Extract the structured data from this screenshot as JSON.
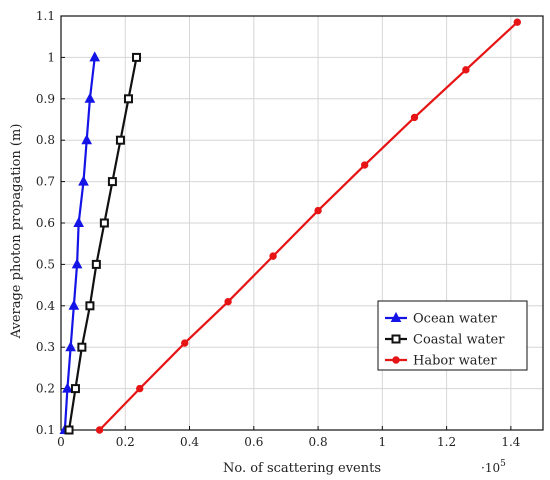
{
  "chart_data": {
    "type": "line",
    "title": "",
    "xlabel": "No. of scattering events",
    "ylabel": "Average photon propagation (m)",
    "x_multiplier": "·10",
    "x_multiplier_exp": "5",
    "xlim": [
      0,
      1.5
    ],
    "ylim": [
      0.1,
      1.1
    ],
    "xticks": [
      "0",
      "0.2",
      "0.4",
      "0.6",
      "0.8",
      "1",
      "1.2",
      "1.4"
    ],
    "xtick_values": [
      0,
      0.2,
      0.4,
      0.6,
      0.8,
      1.0,
      1.2,
      1.4
    ],
    "yticks": [
      "0.1",
      "0.2",
      "0.3",
      "0.4",
      "0.5",
      "0.6",
      "0.7",
      "0.8",
      "0.9",
      "1",
      "1.1"
    ],
    "ytick_values": [
      0.1,
      0.2,
      0.3,
      0.4,
      0.5,
      0.6,
      0.7,
      0.8,
      0.9,
      1.0,
      1.1
    ],
    "grid": true,
    "legend_position": "center-right",
    "series": [
      {
        "name": "Ocean water",
        "color": "#1414e6",
        "marker": "triangle",
        "x": [
          0.012,
          0.02,
          0.03,
          0.04,
          0.05,
          0.055,
          0.07,
          0.08,
          0.09,
          0.105
        ],
        "y": [
          0.1,
          0.2,
          0.3,
          0.4,
          0.5,
          0.6,
          0.7,
          0.8,
          0.9,
          1.0
        ]
      },
      {
        "name": "Coastal water",
        "color": "#111111",
        "marker": "square",
        "x": [
          0.025,
          0.045,
          0.065,
          0.09,
          0.11,
          0.135,
          0.16,
          0.185,
          0.21,
          0.235
        ],
        "y": [
          0.1,
          0.2,
          0.3,
          0.4,
          0.5,
          0.6,
          0.7,
          0.8,
          0.9,
          1.0
        ]
      },
      {
        "name": "Habor water",
        "color": "#e61414",
        "marker": "circle",
        "x": [
          0.12,
          0.245,
          0.385,
          0.52,
          0.66,
          0.8,
          0.945,
          1.1,
          1.26,
          1.42
        ],
        "y": [
          0.1,
          0.2,
          0.31,
          0.41,
          0.52,
          0.63,
          0.74,
          0.855,
          0.97,
          1.085
        ]
      }
    ]
  }
}
